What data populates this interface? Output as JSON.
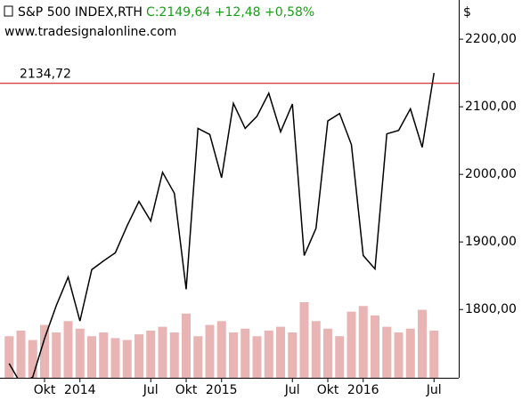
{
  "chart_data": {
    "type": "line",
    "title": "S&P 500 INDEX,RTH",
    "quote": "C:2149,64 +12,48 +0,58%",
    "subtitle": "www.tradesignalonline.com",
    "y_unit": "$",
    "color": "#000000",
    "quote_color": "#1a9e1a",
    "categories": [
      "2013-07",
      "2013-08",
      "2013-09",
      "2013-10",
      "2013-11",
      "2013-12",
      "2014-01",
      "2014-02",
      "2014-03",
      "2014-04",
      "2014-05",
      "2014-06",
      "2014-07",
      "2014-08",
      "2014-09",
      "2014-10",
      "2014-11",
      "2014-12",
      "2015-01",
      "2015-02",
      "2015-03",
      "2015-04",
      "2015-05",
      "2015-06",
      "2015-07",
      "2015-08",
      "2015-09",
      "2015-10",
      "2015-11",
      "2015-12",
      "2016-01",
      "2016-02",
      "2016-03",
      "2016-04",
      "2016-05",
      "2016-06",
      "2016-07"
    ],
    "values": [
      1720,
      1690,
      1700,
      1757,
      1806,
      1848,
      1783,
      1859,
      1872,
      1884,
      1924,
      1960,
      1931,
      2003,
      1972,
      1830,
      2068,
      2059,
      1995,
      2105,
      2068,
      2086,
      2120,
      2063,
      2104,
      1880,
      1920,
      2079,
      2090,
      2044,
      1880,
      1860,
      2060,
      2065,
      2097,
      2040,
      2150
    ],
    "volume": [
      22,
      25,
      20,
      28,
      24,
      30,
      26,
      22,
      24,
      21,
      20,
      23,
      25,
      27,
      24,
      34,
      22,
      28,
      30,
      24,
      26,
      22,
      25,
      27,
      24,
      40,
      30,
      26,
      22,
      35,
      38,
      33,
      27,
      24,
      26,
      36,
      25
    ],
    "volume_color": "#e8b4b4",
    "reference_line": {
      "value": 2134.72,
      "label": "2134,72",
      "color": "#cc0000"
    },
    "ylim": [
      1699,
      2258
    ],
    "yticks": [
      {
        "value": 1800,
        "label": "1800,00"
      },
      {
        "value": 1900,
        "label": "1900,00"
      },
      {
        "value": 2000,
        "label": "2000,00"
      },
      {
        "value": 2100,
        "label": "2100,00"
      },
      {
        "value": 2200,
        "label": "2200,00"
      }
    ],
    "xticks": [
      {
        "value": "2013-10",
        "label": "Okt"
      },
      {
        "value": "2014-01",
        "label": "2014"
      },
      {
        "value": "2014-07",
        "label": "Jul"
      },
      {
        "value": "2014-10",
        "label": "Okt"
      },
      {
        "value": "2015-01",
        "label": "2015"
      },
      {
        "value": "2015-07",
        "label": "Jul"
      },
      {
        "value": "2015-10",
        "label": "Okt"
      },
      {
        "value": "2016-01",
        "label": "2016"
      },
      {
        "value": "2016-07",
        "label": "Jul"
      }
    ]
  }
}
